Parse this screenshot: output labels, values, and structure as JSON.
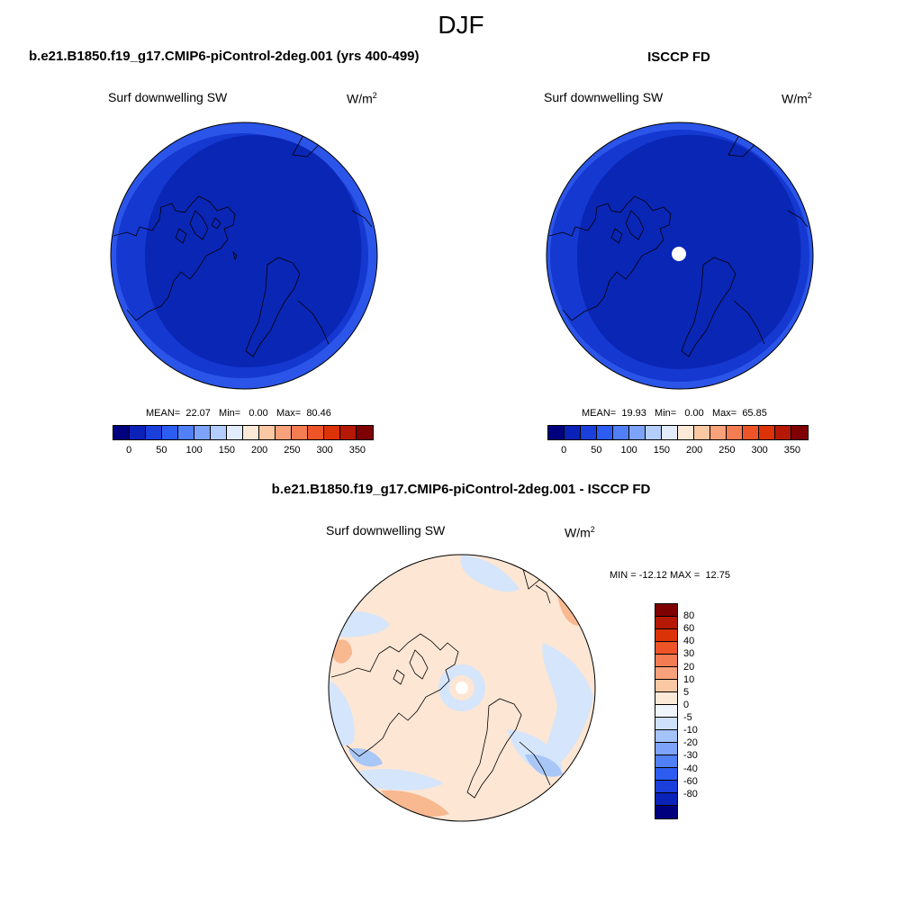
{
  "season": "DJF",
  "panels": {
    "model": {
      "title": "b.e21.B1850.f19_g17.CMIP6-piControl-2deg.001 (yrs 400-499)",
      "var_label": "Surf downwelling SW",
      "units_base": "W/m",
      "units_exp": "2",
      "mean_label": "MEAN=",
      "mean": "22.07",
      "min_label": "Min=",
      "min": "0.00",
      "max_label": "Max=",
      "max": "80.46"
    },
    "obs": {
      "title": "ISCCP FD",
      "var_label": "Surf downwelling SW",
      "units_base": "W/m",
      "units_exp": "2",
      "mean_label": "MEAN=",
      "mean": "19.93",
      "min_label": "Min=",
      "min": "0.00",
      "max_label": "Max=",
      "max": "65.85"
    },
    "diff": {
      "title": "b.e21.B1850.f19_g17.CMIP6-piControl-2deg.001 - ISCCP FD",
      "var_label": "Surf downwelling SW",
      "units_base": "W/m",
      "units_exp": "2",
      "min_label": "MIN =",
      "min": "-12.12",
      "max_label": "MAX =",
      "max": "12.75"
    }
  },
  "abs_colorbar": {
    "colors": [
      "#00007f",
      "#0b22b8",
      "#1a3fdb",
      "#2c5df0",
      "#507ff6",
      "#7ea3fa",
      "#b3cdfc",
      "#e2ecfd",
      "#fde9d7",
      "#fbc8a4",
      "#f9a17a",
      "#f47c52",
      "#ed5428",
      "#dc3208",
      "#b51905",
      "#7f0000"
    ],
    "ticks": [
      "0",
      "50",
      "100",
      "150",
      "200",
      "250",
      "300",
      "350"
    ]
  },
  "diff_colorbar": {
    "colors": [
      "#7f0000",
      "#b51905",
      "#dc3208",
      "#ed5428",
      "#f47c52",
      "#f9a17a",
      "#fbc8a4",
      "#fde9d7",
      "#f0f4fb",
      "#cfe0fb",
      "#a4c3f9",
      "#7ea3fa",
      "#507ff6",
      "#2c5df0",
      "#1a3fdb",
      "#0b22b8",
      "#00007f"
    ],
    "ticks": [
      "80",
      "60",
      "40",
      "30",
      "20",
      "10",
      "5",
      "0",
      "-5",
      "-10",
      "-20",
      "-30",
      "-40",
      "-60",
      "-80"
    ]
  },
  "map_colors": {
    "model_inner": "#0a26b5",
    "model_mid": "#1438d0",
    "model_outer": "#2b55e8",
    "obs_inner": "#0a26b5",
    "obs_mid": "#1438d0",
    "obs_outer": "#2b55e8",
    "diff_base": "#fde6d4",
    "diff_blue": "#d5e5fb",
    "diff_blue2": "#a9c7f6",
    "diff_red": "#f8b890",
    "pole_hole": "#ffffff"
  }
}
